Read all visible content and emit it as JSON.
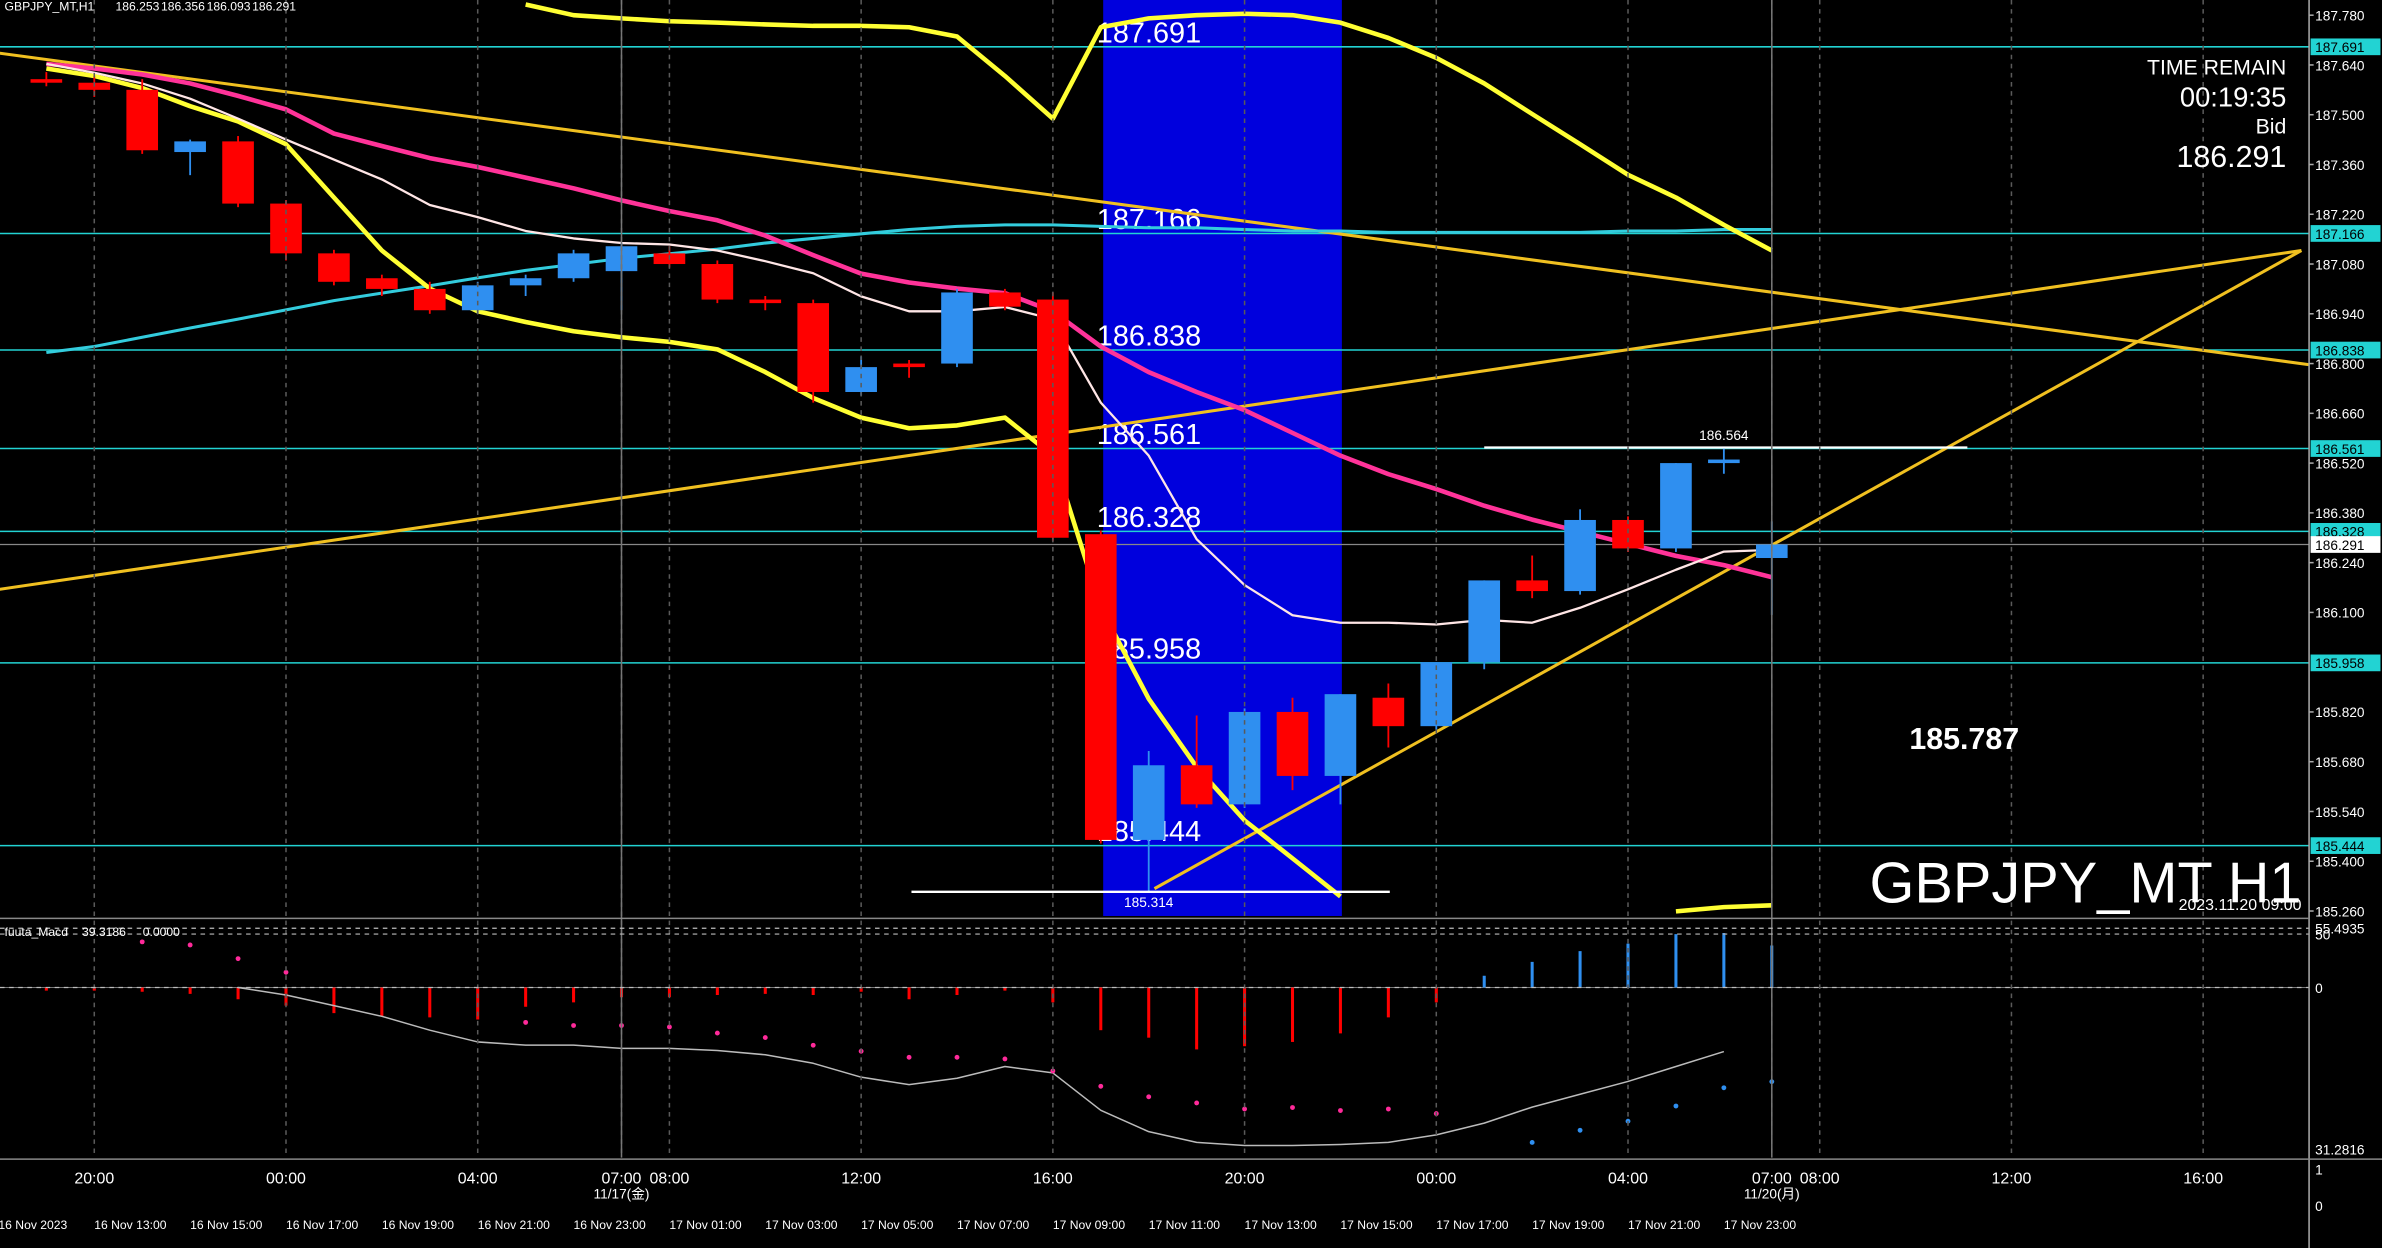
{
  "chart_data": [
    {
      "type": "candlestick",
      "title": "GBPJPY_MT,H1",
      "xlim": [
        -0.967,
        47.21
      ],
      "ylim": [
        185.2458,
        187.8227
      ],
      "grid": true,
      "bull_color": "#2f8ff0",
      "bear_color": "#ff0000",
      "candles": [
        {
          "open": 187.6,
          "high": 187.62,
          "low": 187.58,
          "close": 187.59
        },
        {
          "open": 187.59,
          "high": 187.61,
          "low": 187.55,
          "close": 187.57
        },
        {
          "open": 187.57,
          "high": 187.6,
          "low": 187.39,
          "close": 187.4
        },
        {
          "open": 187.395,
          "high": 187.43,
          "low": 187.33,
          "close": 187.425
        },
        {
          "open": 187.425,
          "high": 187.44,
          "low": 187.24,
          "close": 187.25
        },
        {
          "open": 187.25,
          "high": 187.26,
          "low": 187.09,
          "close": 187.11
        },
        {
          "open": 187.11,
          "high": 187.12,
          "low": 187.02,
          "close": 187.03
        },
        {
          "open": 187.04,
          "high": 187.05,
          "low": 186.99,
          "close": 187.01
        },
        {
          "open": 187.01,
          "high": 187.03,
          "low": 186.94,
          "close": 186.95
        },
        {
          "open": 186.95,
          "high": 187.03,
          "low": 186.94,
          "close": 187.02
        },
        {
          "open": 187.02,
          "high": 187.05,
          "low": 186.99,
          "close": 187.04
        },
        {
          "open": 187.04,
          "high": 187.12,
          "low": 187.03,
          "close": 187.11
        },
        {
          "open": 187.06,
          "high": 187.14,
          "low": 186.95,
          "close": 187.13
        },
        {
          "open": 187.11,
          "high": 187.13,
          "low": 187.07,
          "close": 187.08
        },
        {
          "open": 187.08,
          "high": 187.09,
          "low": 186.97,
          "close": 186.98
        },
        {
          "open": 186.98,
          "high": 186.99,
          "low": 186.95,
          "close": 186.97
        },
        {
          "open": 186.97,
          "high": 186.98,
          "low": 186.69,
          "close": 186.72
        },
        {
          "open": 186.72,
          "high": 186.82,
          "low": 186.71,
          "close": 186.79
        },
        {
          "open": 186.8,
          "high": 186.81,
          "low": 186.76,
          "close": 186.79
        },
        {
          "open": 186.8,
          "high": 187.01,
          "low": 186.79,
          "close": 187.0
        },
        {
          "open": 187.0,
          "high": 187.01,
          "low": 186.95,
          "close": 186.96
        },
        {
          "open": 186.98,
          "high": 187.0,
          "low": 186.3,
          "close": 186.31
        },
        {
          "open": 186.32,
          "high": 186.33,
          "low": 185.45,
          "close": 185.46
        },
        {
          "open": 185.46,
          "high": 185.71,
          "low": 185.314,
          "close": 185.67
        },
        {
          "open": 185.67,
          "high": 185.81,
          "low": 185.55,
          "close": 185.56
        },
        {
          "open": 185.56,
          "high": 185.83,
          "low": 185.55,
          "close": 185.82
        },
        {
          "open": 185.82,
          "high": 185.86,
          "low": 185.6,
          "close": 185.64
        },
        {
          "open": 185.64,
          "high": 185.87,
          "low": 185.56,
          "close": 185.87
        },
        {
          "open": 185.86,
          "high": 185.9,
          "low": 185.72,
          "close": 185.78
        },
        {
          "open": 185.78,
          "high": 185.96,
          "low": 185.77,
          "close": 185.96
        },
        {
          "open": 185.96,
          "high": 186.19,
          "low": 185.94,
          "close": 186.19
        },
        {
          "open": 186.19,
          "high": 186.26,
          "low": 186.14,
          "close": 186.16
        },
        {
          "open": 186.16,
          "high": 186.39,
          "low": 186.15,
          "close": 186.36
        },
        {
          "open": 186.36,
          "high": 186.37,
          "low": 186.27,
          "close": 186.28
        },
        {
          "open": 186.28,
          "high": 186.52,
          "low": 186.27,
          "close": 186.52
        },
        {
          "open": 186.52,
          "high": 186.564,
          "low": 186.49,
          "close": 186.53
        },
        {
          "open": 186.253,
          "high": 186.356,
          "low": 186.093,
          "close": 186.291
        }
      ],
      "lines": [
        {
          "color": "#33ccdd",
          "width": 2,
          "values": [
            186.831,
            186.848,
            186.874,
            186.9,
            186.925,
            186.951,
            186.977,
            186.998,
            187.019,
            187.041,
            187.062,
            187.079,
            187.096,
            187.109,
            187.122,
            187.139,
            187.152,
            187.165,
            187.177,
            187.186,
            187.19,
            187.19,
            187.186,
            187.182,
            187.182,
            187.177,
            187.173,
            187.173,
            187.169,
            187.169,
            187.169,
            187.169,
            187.169,
            187.173,
            187.173,
            187.177,
            187.177
          ]
        },
        {
          "color": "#ffff33",
          "width": 3,
          "values": [
            null,
            null,
            null,
            null,
            null,
            null,
            null,
            null,
            null,
            null,
            187.81,
            187.78,
            187.771,
            187.763,
            187.759,
            187.754,
            187.75,
            187.75,
            187.746,
            187.72,
            187.609,
            187.489,
            187.746,
            187.771,
            187.78,
            187.784,
            187.78,
            187.759,
            187.716,
            187.66,
            187.588,
            187.502,
            187.417,
            187.331,
            187.267,
            187.19,
            187.118
          ]
        },
        {
          "color": "#ffff33",
          "width": 3,
          "values": [
            187.63,
            187.609,
            187.575,
            187.524,
            187.481,
            187.417,
            187.267,
            187.118,
            187.011,
            186.947,
            186.917,
            186.891,
            186.874,
            186.861,
            186.84,
            186.776,
            186.703,
            186.648,
            186.618,
            186.626,
            186.648,
            186.541,
            186.113,
            185.857,
            185.665,
            185.515,
            185.408,
            185.301,
            null,
            null,
            null,
            null,
            null,
            null,
            185.259,
            185.271,
            185.276
          ]
        },
        {
          "color": "#ff3399",
          "width": 3,
          "values": [
            187.643,
            187.63,
            187.613,
            187.588,
            187.553,
            187.515,
            187.447,
            187.412,
            187.378,
            187.353,
            187.323,
            187.293,
            187.259,
            187.229,
            187.203,
            187.16,
            187.105,
            187.053,
            187.028,
            187.011,
            186.998,
            186.947,
            186.848,
            186.776,
            186.72,
            186.669,
            186.605,
            186.541,
            186.489,
            186.447,
            186.4,
            186.361,
            186.327,
            186.293,
            186.259,
            186.233,
            186.199
          ]
        },
        {
          "color": "#ffe6e6",
          "width": 1.5,
          "values": [
            187.643,
            187.618,
            187.588,
            187.545,
            187.489,
            187.43,
            187.374,
            187.318,
            187.246,
            187.212,
            187.173,
            187.152,
            187.139,
            187.135,
            187.118,
            187.088,
            187.054,
            186.989,
            186.947,
            186.947,
            186.959,
            186.925,
            186.69,
            186.541,
            186.306,
            186.177,
            186.092,
            186.071,
            186.071,
            186.066,
            186.079,
            186.071,
            186.113,
            186.165,
            186.22,
            186.271,
            186.276
          ]
        }
      ],
      "trendlines": [
        {
          "color": "#f0c020",
          "x": [
            -0.97,
            47.05
          ],
          "y": [
            186.165,
            187.118
          ]
        },
        {
          "color": "#f0c020",
          "x": [
            -0.97,
            47.2
          ],
          "y": [
            187.673,
            186.797
          ]
        },
        {
          "color": "#f0c020",
          "x": [
            23.12,
            47.05
          ],
          "y": [
            185.323,
            187.118
          ]
        }
      ],
      "segments": [
        {
          "color": "#ffffff",
          "x": [
            30.0,
            40.08
          ],
          "y": 186.564
        },
        {
          "color": "#ffffff",
          "x": [
            18.05,
            28.03
          ],
          "y": 185.314
        }
      ],
      "highlight": {
        "x": [
          22.05,
          27.03
        ],
        "color": "#0000dd"
      },
      "levels": [
        187.691,
        187.166,
        186.838,
        186.561,
        186.328,
        185.958,
        185.444
      ],
      "level_color": "#22d3d3",
      "bid": 186.291,
      "bid_label": "Bid",
      "time_remain_label": "TIME REMAIN",
      "time_remain": "00:19:35",
      "annotation": 185.787,
      "watermark": "GBPJPY_MT H1",
      "timestamp": "2023.11.20 09:00",
      "yticks": [
        {
          "value": 187.78,
          "label": "187.780"
        },
        {
          "value": 187.64,
          "label": "187.640"
        },
        {
          "value": 187.5,
          "label": "187.500"
        },
        {
          "value": 187.36,
          "label": "187.360"
        },
        {
          "value": 187.22,
          "label": "187.220"
        },
        {
          "value": 187.08,
          "label": "187.080"
        },
        {
          "value": 186.94,
          "label": "186.940"
        },
        {
          "value": 186.8,
          "label": "186.800"
        },
        {
          "value": 186.66,
          "label": "186.660"
        },
        {
          "value": 186.52,
          "label": "186.520"
        },
        {
          "value": 186.38,
          "label": "186.380"
        },
        {
          "value": 186.24,
          "label": "186.240"
        },
        {
          "value": 186.1,
          "label": "186.100"
        },
        {
          "value": 185.82,
          "label": "185.820"
        },
        {
          "value": 185.68,
          "label": "185.680"
        },
        {
          "value": 185.54,
          "label": "185.540"
        },
        {
          "value": 185.4,
          "label": "185.400"
        },
        {
          "value": 185.26,
          "label": "185.260"
        }
      ],
      "xticks": [
        {
          "value": 1,
          "label": "20:00"
        },
        {
          "value": 5,
          "label": "00:00"
        },
        {
          "value": 9,
          "label": "04:00"
        },
        {
          "value": 12,
          "label": "07:00"
        },
        {
          "value": 13,
          "label": "08:00"
        },
        {
          "value": 17,
          "label": "12:00"
        },
        {
          "value": 21,
          "label": "16:00"
        },
        {
          "value": 25,
          "label": "20:00"
        },
        {
          "value": 29,
          "label": "00:00"
        },
        {
          "value": 33,
          "label": "04:00"
        },
        {
          "value": 36,
          "label": "07:00"
        },
        {
          "value": 37,
          "label": "08:00"
        },
        {
          "value": 41,
          "label": "12:00"
        },
        {
          "value": 45,
          "label": "16:00"
        }
      ],
      "date_labels": [
        {
          "value": 12,
          "label": "11/17(金)"
        },
        {
          "value": 36,
          "label": "11/20(月)"
        }
      ],
      "server_xticks": [
        {
          "value": -1,
          "label": "16 Nov 2023"
        },
        {
          "value": 1,
          "label": "16 Nov 13:00"
        },
        {
          "value": 3,
          "label": "16 Nov 15:00"
        },
        {
          "value": 5,
          "label": "16 Nov 17:00"
        },
        {
          "value": 7,
          "label": "16 Nov 19:00"
        },
        {
          "value": 9,
          "label": "16 Nov 21:00"
        },
        {
          "value": 11,
          "label": "16 Nov 23:00"
        },
        {
          "value": 13,
          "label": "17 Nov 01:00"
        },
        {
          "value": 15,
          "label": "17 Nov 03:00"
        },
        {
          "value": 17,
          "label": "17 Nov 05:00"
        },
        {
          "value": 19,
          "label": "17 Nov 07:00"
        },
        {
          "value": 21,
          "label": "17 Nov 09:00"
        },
        {
          "value": 23,
          "label": "17 Nov 11:00"
        },
        {
          "value": 25,
          "label": "17 Nov 13:00"
        },
        {
          "value": 27,
          "label": "17 Nov 15:00"
        },
        {
          "value": 29,
          "label": "17 Nov 17:00"
        },
        {
          "value": 31,
          "label": "17 Nov 19:00"
        },
        {
          "value": 33,
          "label": "17 Nov 21:00"
        },
        {
          "value": 35,
          "label": "17 Nov 23:00"
        }
      ]
    },
    {
      "type": "macd",
      "title": "fuuta_Macd",
      "ylim": [
        -159.3,
        62.6
      ],
      "yticks": [
        55.4935,
        50,
        0
      ],
      "min_label": "31.2816",
      "second_value": {
        "value": 0,
        "label": "0.0000"
      },
      "positive_color": "#2f8ff0",
      "negative_color": "#ff0000",
      "values": [
        -3,
        -3,
        -4,
        -6,
        -11,
        -17,
        -24,
        -27,
        -28,
        -30,
        -18,
        -14,
        -9,
        -9,
        -7,
        -6,
        -7,
        -4,
        -11,
        -7,
        -3,
        -14,
        -40,
        -47,
        -58,
        -55,
        -51,
        -43,
        -28,
        -14,
        11,
        24,
        34,
        41,
        50,
        51,
        39.3186
      ],
      "signal_line": {
        "color": "#bbbbbb",
        "values": [
          null,
          null,
          null,
          null,
          0,
          -7,
          -17,
          -27,
          -40,
          -51,
          -54,
          -54,
          -57,
          -57,
          -59,
          -63,
          -71,
          -84,
          -91,
          -85,
          -74,
          -80,
          -115,
          -135,
          -145,
          -148,
          -148,
          -147,
          -145,
          -138,
          -127,
          -112,
          -100,
          -88,
          -74,
          -60,
          null
        ]
      },
      "dots": [
        {
          "color": "#ff2a9a",
          "values": [
            null,
            null,
            42.7,
            39.8,
            27.0,
            14.2,
            null,
            null,
            null,
            null,
            -32.7,
            -35.6,
            -35.6,
            -37.0,
            -42.7,
            -46.9,
            -54.1,
            -59.7,
            -65.4,
            -65.4,
            -66.9,
            -78.2,
            -92.5,
            -102.4,
            -108.1,
            -113.8,
            -112.4,
            -115.2,
            -113.8,
            -118.1,
            null,
            null,
            null,
            null,
            null,
            null,
            null
          ]
        },
        {
          "color": "#2f8ff0",
          "values": [
            null,
            null,
            null,
            null,
            null,
            null,
            null,
            null,
            null,
            null,
            null,
            null,
            null,
            null,
            null,
            null,
            null,
            null,
            null,
            null,
            null,
            null,
            null,
            null,
            null,
            null,
            null,
            null,
            null,
            null,
            null,
            -145.1,
            -133.7,
            -125.2,
            -111.0,
            -93.9,
            -88.2
          ]
        }
      ]
    },
    {
      "type": "empty",
      "ylim": [
        0,
        1
      ],
      "yticks": [
        1,
        0
      ]
    }
  ]
}
